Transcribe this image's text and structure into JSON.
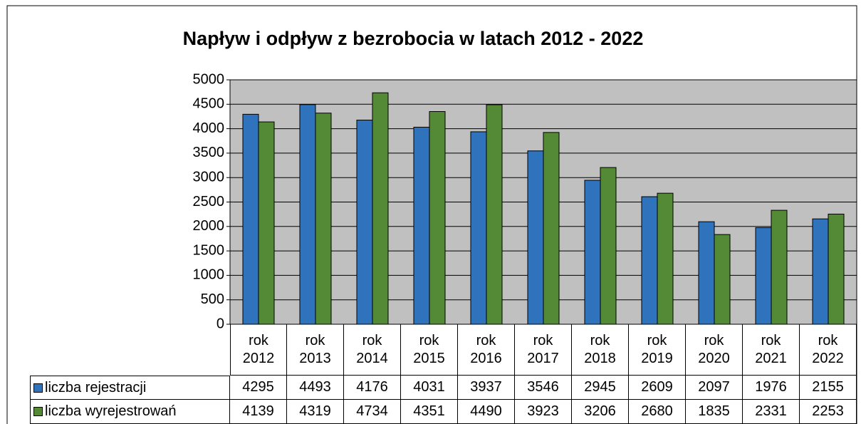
{
  "chart_data": {
    "type": "bar",
    "title": "Napływ i odpływ z bezrobocia w latach 2012 - 2022",
    "categories": [
      "rok 2012",
      "rok 2013",
      "rok 2014",
      "rok 2015",
      "rok 2016",
      "rok 2017",
      "rok 2018",
      "rok 2019",
      "rok 2020",
      "rok 2021",
      "rok 2022"
    ],
    "series": [
      {
        "name": "liczba rejestracji",
        "color": "#2f73bd",
        "values": [
          4295,
          4493,
          4176,
          4031,
          3937,
          3546,
          2945,
          2609,
          2097,
          1976,
          2155
        ]
      },
      {
        "name": "liczba wyrejestrowań",
        "color": "#548a35",
        "values": [
          4139,
          4319,
          4734,
          4351,
          4490,
          3923,
          3206,
          2680,
          1835,
          2331,
          2253
        ]
      }
    ],
    "ylim": [
      0,
      5000
    ],
    "yticks": [
      0,
      500,
      1000,
      1500,
      2000,
      2500,
      3000,
      3500,
      4000,
      4500,
      5000
    ],
    "grid": true
  }
}
